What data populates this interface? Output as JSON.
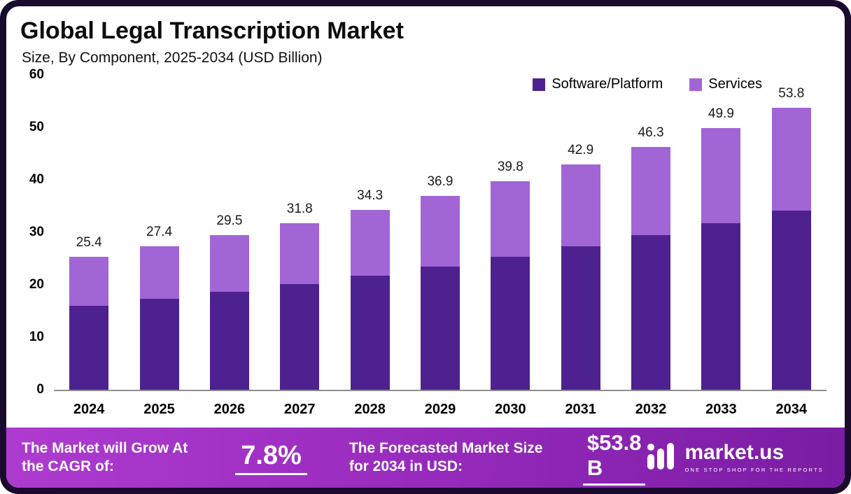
{
  "header": {
    "title": "Global Legal Transcription Market",
    "subtitle": "Size, By Component, 2025-2034 (USD Billion)"
  },
  "legend": {
    "items": [
      {
        "label": "Software/Platform",
        "color": "#4E2190"
      },
      {
        "label": "Services",
        "color": "#A265D6"
      }
    ]
  },
  "chart_data": {
    "type": "bar",
    "stacked": true,
    "title": "Global Legal Transcription Market",
    "subtitle": "Size, By Component, 2025-2034 (USD Billion)",
    "categories": [
      "2024",
      "2025",
      "2026",
      "2027",
      "2028",
      "2029",
      "2030",
      "2031",
      "2032",
      "2033",
      "2034"
    ],
    "series": [
      {
        "name": "Software/Platform",
        "color": "#4E2190",
        "values": [
          16.0,
          17.4,
          18.7,
          20.1,
          21.8,
          23.5,
          25.3,
          27.4,
          29.5,
          31.8,
          34.2
        ]
      },
      {
        "name": "Services",
        "color": "#A265D6",
        "values": [
          9.4,
          10.0,
          10.8,
          11.7,
          12.5,
          13.4,
          14.5,
          15.5,
          16.8,
          18.1,
          19.6
        ]
      }
    ],
    "totals": [
      25.4,
      27.4,
      29.5,
      31.8,
      34.3,
      36.9,
      39.8,
      42.9,
      46.3,
      49.9,
      53.8
    ],
    "ylim": [
      0,
      60
    ],
    "yticks": [
      0,
      10,
      20,
      30,
      40,
      50,
      60
    ],
    "legend_position": "top-right",
    "grid": false
  },
  "banner": {
    "cagr_label": "The Market will Grow At the CAGR of:",
    "cagr_value": "7.8%",
    "forecast_label": "The Forecasted Market Size for 2034 in USD:",
    "forecast_value": "$53.8 B",
    "brand": "market.us",
    "brand_tagline": "ONE STOP SHOP FOR THE REPORTS"
  },
  "colors": {
    "frame_border": "#1A0B2E",
    "software_bar": "#4E2190",
    "services_bar": "#A265D6",
    "banner_gradient_start": "#AE3BD0",
    "banner_gradient_end": "#7A1CA4",
    "axis_line": "#8E8E8E"
  }
}
